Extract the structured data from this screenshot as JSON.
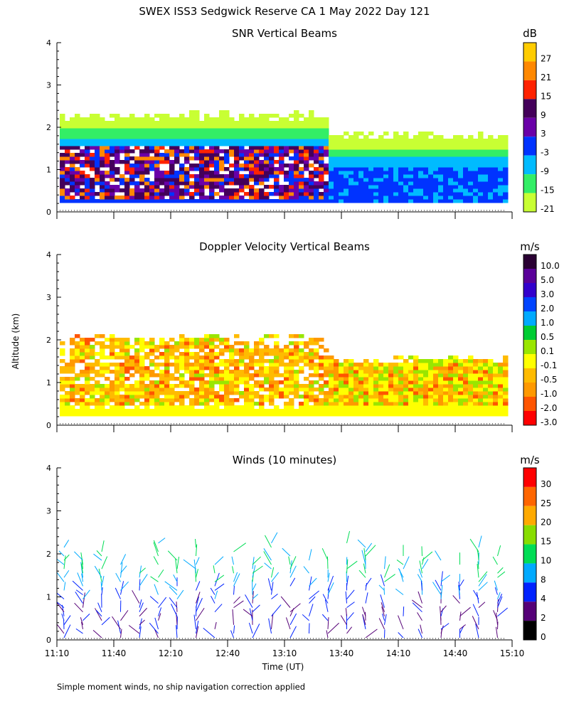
{
  "figure": {
    "title": "SWEX ISS3 Sedgwick Reserve CA   1 May 2022 Day 121",
    "shared_ylabel": "Altitude (km)",
    "xlabel": "Time (UT)",
    "footnote": "Simple moment winds, no ship navigation correction applied"
  },
  "chart_data": [
    {
      "type": "heatmap",
      "title": "SNR Vertical Beams",
      "ylabel": "Altitude (km)",
      "xlabel": "",
      "x_range": [
        "11:10",
        "15:10"
      ],
      "ylim": [
        0,
        4
      ],
      "y_ticks": [
        0,
        1,
        2,
        3,
        4
      ],
      "x_ticks": [
        "11:10",
        "11:40",
        "12:10",
        "12:40",
        "13:10",
        "13:40",
        "14:10",
        "14:40",
        "15:10"
      ],
      "colorbar": {
        "unit": "dB",
        "labels": [
          "27",
          "21",
          "15",
          "9",
          "3",
          "-3",
          "-9",
          "-15",
          "-21"
        ],
        "colors": [
          "#ffcc00",
          "#ff8800",
          "#ff2200",
          "#44005a",
          "#6a00a8",
          "#0033ff",
          "#00bbff",
          "#33ee66",
          "#c8ff33"
        ]
      },
      "profile": [
        {
          "alt_km": 2.0,
          "dB": -21
        },
        {
          "alt_km": 1.8,
          "dB": -15
        },
        {
          "alt_km": 1.6,
          "dB": -9
        },
        {
          "alt_km": 1.3,
          "dB": -3
        },
        {
          "alt_km": 1.0,
          "dB": 3
        },
        {
          "alt_km": 0.6,
          "dB": 9
        },
        {
          "alt_km": 0.3,
          "dB": -3
        }
      ]
    },
    {
      "type": "heatmap",
      "title": "Doppler Velocity Vertical Beams",
      "ylabel": "Altitude (km)",
      "x_range": [
        "11:10",
        "15:10"
      ],
      "ylim": [
        0,
        4
      ],
      "y_ticks": [
        0,
        1,
        2,
        3,
        4
      ],
      "colorbar": {
        "unit": "m/s",
        "labels": [
          "10.0",
          "5.0",
          "3.0",
          "2.0",
          "1.0",
          "0.5",
          "0.1",
          "-0.1",
          "-0.5",
          "-1.0",
          "-2.0",
          "-3.0"
        ],
        "colors": [
          "#2a0033",
          "#5a0099",
          "#3300cc",
          "#0044ff",
          "#00aaff",
          "#00cc33",
          "#99e600",
          "#ffff00",
          "#ffbb00",
          "#ff9900",
          "#ff5500",
          "#ff0000"
        ]
      },
      "profile": [
        {
          "alt_km": 1.8,
          "m_s": -0.5
        },
        {
          "alt_km": 1.2,
          "m_s": -0.1
        },
        {
          "alt_km": 0.6,
          "m_s": -0.1
        },
        {
          "alt_km": 0.2,
          "m_s": -0.1
        }
      ]
    },
    {
      "type": "scatter",
      "title": "Winds (10 minutes)",
      "ylabel": "Altitude (km)",
      "xlabel": "Time (UT)",
      "x_range": [
        "11:10",
        "15:10"
      ],
      "ylim": [
        0,
        4
      ],
      "y_ticks": [
        0,
        1,
        2,
        3,
        4
      ],
      "x_ticks": [
        "11:10",
        "11:40",
        "12:10",
        "12:40",
        "13:10",
        "13:40",
        "14:10",
        "14:40",
        "15:10"
      ],
      "colorbar": {
        "unit": "m/s",
        "labels": [
          "30",
          "25",
          "20",
          "15",
          "10",
          "8",
          "4",
          "2",
          "0"
        ],
        "colors": [
          "#ff0000",
          "#ff6600",
          "#ffaa00",
          "#88dd00",
          "#00dd55",
          "#00aaff",
          "#0022ff",
          "#550077",
          "#000000"
        ]
      },
      "series": [
        {
          "time": "11:20",
          "max_alt_km": 2.0
        },
        {
          "time": "11:40",
          "max_alt_km": 2.0
        },
        {
          "time": "12:10",
          "max_alt_km": 2.0
        },
        {
          "time": "12:40",
          "max_alt_km": 2.1
        },
        {
          "time": "13:10",
          "max_alt_km": 2.0
        },
        {
          "time": "13:40",
          "max_alt_km": 2.1
        },
        {
          "time": "14:10",
          "max_alt_km": 2.4
        },
        {
          "time": "14:40",
          "max_alt_km": 2.0
        },
        {
          "time": "15:00",
          "max_alt_km": 1.8
        }
      ]
    }
  ]
}
